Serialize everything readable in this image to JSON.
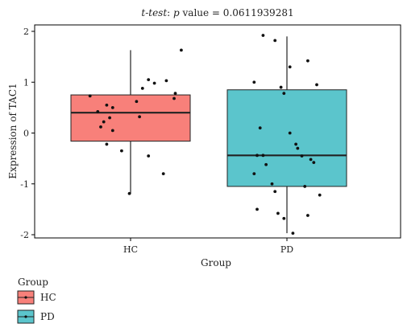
{
  "chart_data": {
    "type": "box",
    "title": "t-test: p value = 0.0611939281",
    "title_parts": [
      "t-test",
      ": ",
      "p",
      " value = 0.0611939281"
    ],
    "xlabel": "Group",
    "ylabel": "Expression of TAC1",
    "ylim": [
      -2.15,
      2.1
    ],
    "yticks": [
      -2,
      -1,
      0,
      1,
      2
    ],
    "categories": [
      "HC",
      "PD"
    ],
    "grid": false,
    "legend": {
      "title": "Group",
      "placement": "bottom-left",
      "entries": [
        "HC",
        "PD"
      ]
    },
    "boxes": [
      {
        "group": "HC",
        "color": "#F8807A",
        "whisker_low": -1.2,
        "q1": -0.16,
        "median": 0.4,
        "q3": 0.75,
        "whisker_high": 1.63,
        "points": [
          [
            0.75,
            0.78
          ],
          [
            -0.68,
            0.73
          ],
          [
            0.73,
            0.68
          ],
          [
            -0.4,
            0.55
          ],
          [
            -0.3,
            0.5
          ],
          [
            -0.55,
            0.42
          ],
          [
            0.15,
            0.32
          ],
          [
            -0.35,
            0.3
          ],
          [
            -0.45,
            0.22
          ],
          [
            0.1,
            0.62
          ],
          [
            -0.3,
            0.05
          ],
          [
            -0.5,
            0.12
          ],
          [
            -0.4,
            -0.22
          ],
          [
            -0.15,
            -0.35
          ],
          [
            0.3,
            -0.45
          ],
          [
            0.55,
            -0.8
          ],
          [
            -0.02,
            -1.19
          ],
          [
            0.3,
            1.05
          ],
          [
            0.2,
            0.88
          ],
          [
            0.4,
            0.98
          ],
          [
            0.6,
            1.03
          ],
          [
            0.85,
            1.63
          ]
        ]
      },
      {
        "group": "PD",
        "color": "#5BC5CC",
        "whisker_low": -1.97,
        "q1": -1.05,
        "median": -0.44,
        "q3": 0.85,
        "whisker_high": 1.9,
        "points": [
          [
            -0.4,
            1.92
          ],
          [
            -0.2,
            1.82
          ],
          [
            0.35,
            1.42
          ],
          [
            0.05,
            1.3
          ],
          [
            -0.55,
            1.0
          ],
          [
            -0.1,
            0.9
          ],
          [
            0.5,
            0.95
          ],
          [
            -0.05,
            0.78
          ],
          [
            -0.45,
            0.1
          ],
          [
            0.05,
            0.0
          ],
          [
            0.15,
            -0.22
          ],
          [
            0.18,
            -0.3
          ],
          [
            -0.5,
            -0.44
          ],
          [
            -0.4,
            -0.44
          ],
          [
            0.25,
            -0.45
          ],
          [
            0.4,
            -0.52
          ],
          [
            0.45,
            -0.58
          ],
          [
            -0.35,
            -0.62
          ],
          [
            -0.55,
            -0.8
          ],
          [
            -0.25,
            -1.0
          ],
          [
            0.3,
            -1.05
          ],
          [
            -0.2,
            -1.15
          ],
          [
            0.55,
            -1.22
          ],
          [
            -0.5,
            -1.5
          ],
          [
            -0.15,
            -1.58
          ],
          [
            0.35,
            -1.62
          ],
          [
            -0.05,
            -1.68
          ],
          [
            0.1,
            -1.97
          ]
        ]
      }
    ]
  }
}
